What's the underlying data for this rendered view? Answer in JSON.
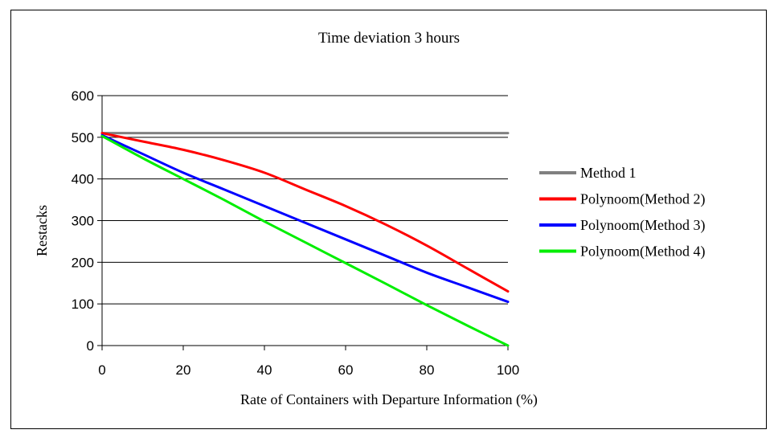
{
  "chart_data": {
    "type": "line",
    "title": "Time deviation 3 hours",
    "xlabel": "Rate of Containers with Departure Information (%)",
    "ylabel": "Restacks",
    "xlim": [
      0,
      100
    ],
    "ylim": [
      0,
      600
    ],
    "x_ticks": [
      "0",
      "20",
      "40",
      "60",
      "80",
      "100"
    ],
    "y_ticks": [
      "0",
      "100",
      "200",
      "300",
      "400",
      "500",
      "600"
    ],
    "grid": "horizontal",
    "legend_position": "right",
    "x": [
      0,
      10,
      20,
      30,
      40,
      50,
      60,
      70,
      80,
      90,
      100
    ],
    "series": [
      {
        "name": "Method 1",
        "color": "#808080",
        "values": [
          510,
          510,
          510,
          510,
          510,
          510,
          510,
          510,
          510,
          510,
          510
        ]
      },
      {
        "name": "Polynoom(Method 2)",
        "color": "#ff0000",
        "values": [
          510,
          490,
          470,
          445,
          415,
          375,
          335,
          290,
          240,
          185,
          130
        ]
      },
      {
        "name": "Polynoom(Method 3)",
        "color": "#0000ff",
        "values": [
          505,
          460,
          415,
          375,
          335,
          295,
          255,
          215,
          175,
          140,
          105
        ]
      },
      {
        "name": "Polynoom(Method 4)",
        "color": "#00ee00",
        "values": [
          503,
          450,
          400,
          350,
          298,
          248,
          198,
          148,
          97,
          48,
          0
        ]
      }
    ]
  }
}
